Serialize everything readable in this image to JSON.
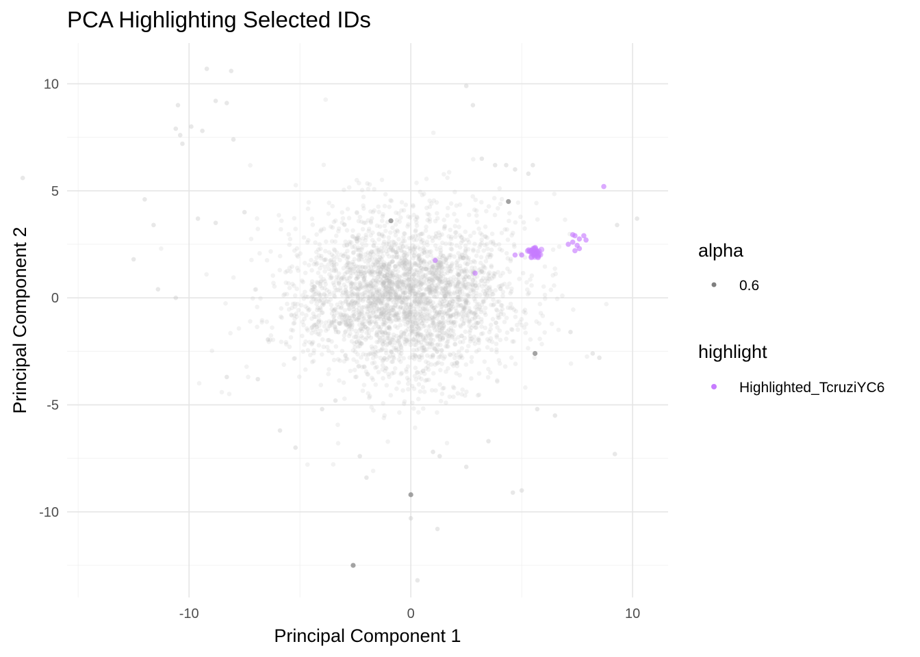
{
  "chart_data": {
    "type": "scatter",
    "title": "PCA Highlighting Selected IDs",
    "xlabel": "Principal Component 1",
    "ylabel": "Principal Component 2",
    "xlim": [
      -15.5,
      11.6
    ],
    "ylim": [
      -14,
      11.9
    ],
    "x_ticks": [
      -10,
      0,
      10
    ],
    "y_ticks": [
      10,
      5,
      0,
      -5,
      -10
    ],
    "x_tick_labels": [
      "-10",
      "0",
      "10"
    ],
    "y_tick_labels": [
      "10",
      "5",
      "0",
      "-5",
      "-10"
    ],
    "grid": true,
    "legend_position": "right",
    "legend": {
      "alpha": {
        "title": "alpha",
        "entries": [
          {
            "label": "0.6",
            "color": "#7f7f7f"
          }
        ]
      },
      "highlight": {
        "title": "highlight",
        "entries": [
          {
            "label": "Highlighted_TcruziYC6",
            "color": "#c77cff"
          }
        ]
      }
    },
    "series": [
      {
        "name": "",
        "color": "#bebebe",
        "distribution": {
          "center": [
            -0.3,
            0.1
          ],
          "sd": [
            2.4,
            1.8
          ],
          "approx_count": 3000
        },
        "outliers": [
          [
            -17.5,
            5.6
          ],
          [
            -12,
            4.6
          ],
          [
            -11.6,
            3.4
          ],
          [
            -11.4,
            0.4
          ],
          [
            -10.6,
            7.9
          ],
          [
            -10.4,
            7.6
          ],
          [
            -10.3,
            7.2
          ],
          [
            -10.5,
            9.0
          ],
          [
            -9.9,
            8.0
          ],
          [
            -9.4,
            7.8
          ],
          [
            -8.8,
            9.2
          ],
          [
            -8.3,
            9.1
          ],
          [
            -8.0,
            7.4
          ],
          [
            -9.2,
            10.7
          ],
          [
            -8.1,
            10.6
          ],
          [
            -7.5,
            4.0
          ],
          [
            -9.6,
            3.7
          ],
          [
            2.5,
            9.9
          ],
          [
            2.8,
            9.0
          ],
          [
            3.2,
            6.5
          ],
          [
            3.8,
            6.2
          ],
          [
            4.3,
            6.2
          ],
          [
            4.7,
            6.0
          ],
          [
            5.3,
            5.8
          ],
          [
            5.5,
            6.2
          ],
          [
            10.2,
            3.7
          ],
          [
            9.3,
            3.4
          ],
          [
            9.2,
            -7.3
          ],
          [
            8.2,
            -2.6
          ],
          [
            8.5,
            -2.8
          ],
          [
            7.2,
            -1.6
          ],
          [
            5.0,
            -9.0
          ],
          [
            4.6,
            -9.1
          ],
          [
            1.2,
            -10.8
          ],
          [
            0.0,
            -10.3
          ],
          [
            0.3,
            -13.2
          ],
          [
            -3.4,
            -4.8
          ],
          [
            -4.0,
            -5.2
          ],
          [
            -5.9,
            -6.2
          ],
          [
            -5.2,
            -7.0
          ],
          [
            -2.3,
            -7.4
          ],
          [
            -2.0,
            -8.4
          ],
          [
            1.0,
            -7.2
          ],
          [
            1.3,
            -7.4
          ],
          [
            2.5,
            -7.9
          ],
          [
            3.5,
            -6.7
          ],
          [
            6.5,
            -5.5
          ],
          [
            5.7,
            -5.2
          ],
          [
            -8.8,
            3.5
          ],
          [
            -10.6,
            0.0
          ],
          [
            -12.5,
            1.8
          ],
          [
            -8.3,
            -3.7
          ],
          [
            -6.9,
            -3.8
          ]
        ],
        "darker_points": [
          [
            -2.6,
            -12.5
          ],
          [
            0.0,
            -9.2
          ],
          [
            4.4,
            4.5
          ],
          [
            5.6,
            -2.6
          ],
          [
            -0.9,
            3.6
          ]
        ]
      },
      {
        "name": "Highlighted_TcruziYC6",
        "color": "#c77cff",
        "cluster": {
          "center": [
            5.6,
            2.1
          ],
          "sd": [
            0.16,
            0.11
          ],
          "approx_count": 40
        },
        "points": [
          [
            1.1,
            1.75
          ],
          [
            2.9,
            1.15
          ],
          [
            4.7,
            2.0
          ],
          [
            5.0,
            2.0
          ],
          [
            8.7,
            5.2
          ],
          [
            7.3,
            2.95
          ],
          [
            7.4,
            2.9
          ],
          [
            7.6,
            2.75
          ],
          [
            7.1,
            2.5
          ],
          [
            7.5,
            2.45
          ],
          [
            7.4,
            2.2
          ],
          [
            7.9,
            2.7
          ],
          [
            7.8,
            2.9
          ],
          [
            7.3,
            2.6
          ],
          [
            7.6,
            2.3
          ]
        ]
      }
    ]
  }
}
